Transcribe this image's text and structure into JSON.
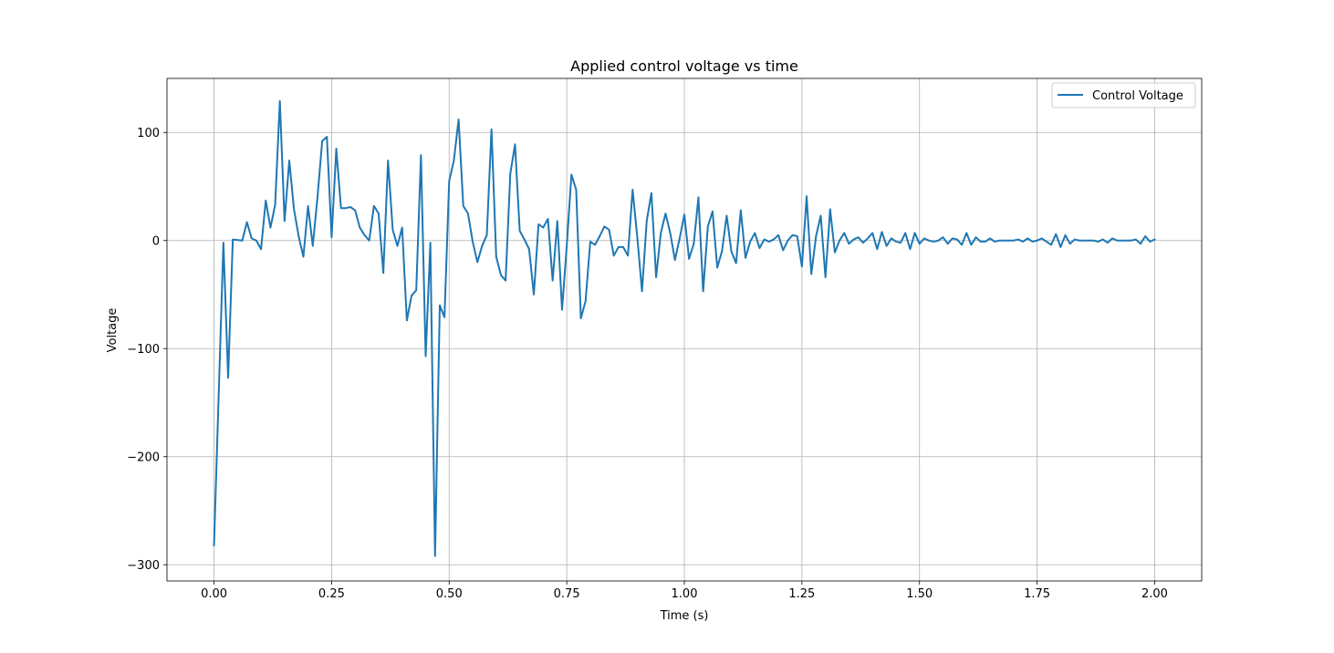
{
  "chart_data": {
    "type": "line",
    "title": "Applied control voltage vs time",
    "xlabel": "Time (s)",
    "ylabel": "Voltage",
    "xlim": [
      -0.1,
      2.1
    ],
    "ylim": [
      -315,
      150
    ],
    "xticks": [
      0.0,
      0.25,
      0.5,
      0.75,
      1.0,
      1.25,
      1.5,
      1.75,
      2.0
    ],
    "xtick_labels": [
      "0.00",
      "0.25",
      "0.50",
      "0.75",
      "1.00",
      "1.25",
      "1.50",
      "1.75",
      "2.00"
    ],
    "yticks": [
      -300,
      -200,
      -100,
      0,
      100
    ],
    "ytick_labels": [
      "−300",
      "−200",
      "−100",
      "0",
      "100"
    ],
    "grid": true,
    "legend_position": "top-right",
    "series": [
      {
        "name": "Control Voltage",
        "color": "#1f77b4",
        "x": [
          0.0,
          0.02,
          0.03,
          0.04,
          0.06,
          0.07,
          0.08,
          0.09,
          0.1,
          0.11,
          0.12,
          0.13,
          0.14,
          0.15,
          0.16,
          0.17,
          0.18,
          0.19,
          0.2,
          0.21,
          0.22,
          0.23,
          0.24,
          0.25,
          0.26,
          0.27,
          0.28,
          0.29,
          0.3,
          0.31,
          0.32,
          0.33,
          0.34,
          0.35,
          0.36,
          0.37,
          0.38,
          0.39,
          0.4,
          0.41,
          0.42,
          0.43,
          0.44,
          0.45,
          0.46,
          0.47,
          0.48,
          0.49,
          0.5,
          0.51,
          0.52,
          0.53,
          0.54,
          0.55,
          0.56,
          0.57,
          0.58,
          0.59,
          0.6,
          0.61,
          0.62,
          0.63,
          0.64,
          0.65,
          0.66,
          0.67,
          0.68,
          0.69,
          0.7,
          0.71,
          0.72,
          0.73,
          0.74,
          0.75,
          0.76,
          0.77,
          0.78,
          0.79,
          0.8,
          0.81,
          0.82,
          0.83,
          0.84,
          0.85,
          0.86,
          0.87,
          0.88,
          0.89,
          0.9,
          0.91,
          0.92,
          0.93,
          0.94,
          0.95,
          0.96,
          0.97,
          0.98,
          0.99,
          1.0,
          1.01,
          1.02,
          1.03,
          1.04,
          1.05,
          1.06,
          1.07,
          1.08,
          1.09,
          1.1,
          1.11,
          1.12,
          1.13,
          1.14,
          1.15,
          1.16,
          1.17,
          1.18,
          1.19,
          1.2,
          1.21,
          1.22,
          1.23,
          1.24,
          1.25,
          1.26,
          1.27,
          1.28,
          1.29,
          1.3,
          1.31,
          1.32,
          1.33,
          1.34,
          1.35,
          1.36,
          1.37,
          1.38,
          1.39,
          1.4,
          1.41,
          1.42,
          1.43,
          1.44,
          1.45,
          1.46,
          1.47,
          1.48,
          1.49,
          1.5,
          1.51,
          1.52,
          1.53,
          1.54,
          1.55,
          1.56,
          1.57,
          1.58,
          1.59,
          1.6,
          1.61,
          1.62,
          1.63,
          1.64,
          1.65,
          1.66,
          1.67,
          1.68,
          1.69,
          1.7,
          1.71,
          1.72,
          1.73,
          1.74,
          1.75,
          1.76,
          1.77,
          1.78,
          1.79,
          1.8,
          1.81,
          1.82,
          1.83,
          1.84,
          1.85,
          1.86,
          1.87,
          1.88,
          1.89,
          1.9,
          1.91,
          1.92,
          1.93,
          1.94,
          1.95,
          1.96,
          1.97,
          1.98,
          1.99,
          2.0
        ],
        "y": [
          -282,
          -2,
          -127,
          1,
          0,
          17,
          2,
          0,
          -8,
          37,
          12,
          33,
          129,
          18,
          74,
          29,
          4,
          -15,
          32,
          -5,
          40,
          92,
          96,
          3,
          85,
          30,
          30,
          31,
          28,
          12,
          5,
          0,
          32,
          25,
          -30,
          74,
          10,
          -5,
          12,
          -74,
          -51,
          -46,
          79,
          -107,
          -2,
          -292,
          -60,
          -71,
          55,
          74,
          112,
          32,
          25,
          -1,
          -20,
          -5,
          5,
          103,
          -15,
          -32,
          -37,
          62,
          89,
          9,
          1,
          -8,
          -50,
          15,
          12,
          20,
          -37,
          18,
          -64,
          -5,
          61,
          47,
          -72,
          -56,
          -1,
          -4,
          4,
          13,
          10,
          -14,
          -6,
          -6,
          -14,
          47,
          3,
          -47,
          18,
          44,
          -34,
          7,
          25,
          7,
          -18,
          2,
          24,
          -17,
          -3,
          40,
          -47,
          13,
          27,
          -25,
          -10,
          23,
          -10,
          -21,
          28,
          -16,
          -1,
          7,
          -7,
          1,
          -1,
          1,
          5,
          -9,
          0,
          5,
          4,
          -24,
          41,
          -31,
          4,
          23,
          -34,
          29,
          -11,
          0,
          7,
          -3,
          1,
          3,
          -2,
          2,
          7,
          -8,
          8,
          -5,
          2,
          -1,
          -2,
          7,
          -8,
          7,
          -3,
          2,
          0,
          -1,
          0,
          3,
          -3,
          2,
          1,
          -4,
          7,
          -4,
          3,
          -1,
          -1,
          2,
          -1,
          0,
          0,
          0,
          0,
          1,
          -1,
          2,
          -1,
          0,
          2,
          -1,
          -4,
          6,
          -6,
          5,
          -3,
          1,
          0,
          0,
          0,
          0,
          -1,
          1,
          -2,
          2,
          0,
          0,
          0,
          0,
          1,
          -3,
          4,
          -1,
          1
        ]
      }
    ]
  }
}
